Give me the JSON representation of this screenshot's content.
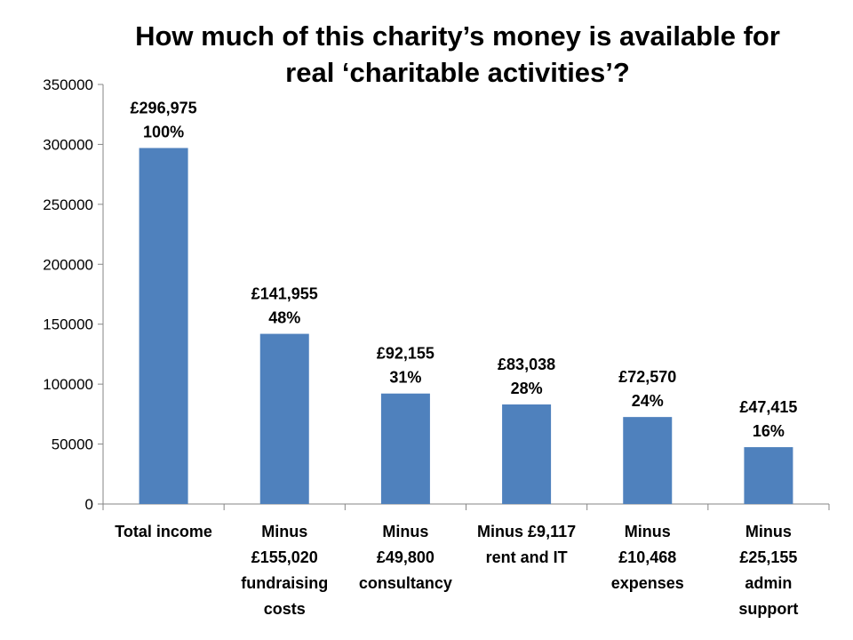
{
  "slide": {
    "title": "How much of this charity’s money is available for\nreal ‘charitable activities’?"
  },
  "chart_data": {
    "type": "bar",
    "title": "How much of this charity’s money is available for real ‘charitable activities’?",
    "categories": [
      "Total income",
      "Minus\n£155,020\nfundraising\ncosts",
      "Minus\n£49,800\nconsultancy",
      "Minus £9,117\nrent and IT",
      "Minus\n£10,468\nexpenses",
      "Minus\n£25,155\nadmin\nsupport"
    ],
    "values": [
      296975,
      141955,
      92155,
      83038,
      72570,
      47415
    ],
    "data_labels": [
      [
        "£296,975",
        "100%"
      ],
      [
        "£141,955",
        "48%"
      ],
      [
        "£92,155",
        "31%"
      ],
      [
        "£83,038",
        "28%"
      ],
      [
        "£72,570",
        "24%"
      ],
      [
        "£47,415",
        "16%"
      ]
    ],
    "ylim": [
      0,
      350000
    ],
    "yticks": [
      0,
      50000,
      100000,
      150000,
      200000,
      250000,
      300000,
      350000
    ],
    "xlabel": "",
    "ylabel": "",
    "grid": false,
    "legend": "none",
    "colors": {
      "bar": "#4F81BD",
      "axis": "#868686",
      "text": "#000000"
    }
  }
}
